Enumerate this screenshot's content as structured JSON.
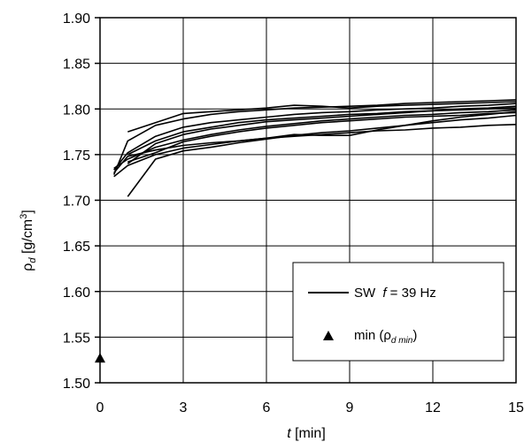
{
  "chart_data": {
    "type": "line",
    "xlabel": "t [min]",
    "ylabel": "ρd [g/cm³]",
    "xlim": [
      0,
      15
    ],
    "ylim": [
      1.5,
      1.9
    ],
    "x_ticks": [
      "0",
      "3",
      "6",
      "9",
      "12",
      "15"
    ],
    "y_ticks": [
      "1.50",
      "1.55",
      "1.60",
      "1.65",
      "1.70",
      "1.75",
      "1.80",
      "1.85",
      "1.90"
    ],
    "grid": true,
    "legend_position": "lower-right",
    "legend": {
      "line_entry": {
        "prefix": "SW",
        "italic": "f",
        "suffix": " = 39 Hz"
      },
      "marker_entry": {
        "prefix": "min (ρ",
        "subscript": "d min",
        "suffix": ")"
      }
    },
    "x": [
      0.5,
      1,
      2,
      3,
      4,
      5,
      6,
      7,
      8,
      9,
      10,
      11,
      12,
      13,
      14,
      15
    ],
    "series": [
      {
        "values": [
          1.728,
          1.765,
          1.782,
          1.789,
          1.794,
          1.797,
          1.799,
          1.801,
          1.802,
          1.803,
          1.804,
          1.806,
          1.807,
          1.808,
          1.809,
          1.81
        ]
      },
      {
        "values": [
          null,
          1.775,
          1.785,
          1.795,
          1.797,
          1.799,
          1.801,
          1.804,
          1.803,
          1.801,
          1.803,
          1.804,
          1.805,
          1.806,
          1.807,
          1.808
        ]
      },
      {
        "values": [
          1.733,
          1.752,
          1.77,
          1.78,
          1.785,
          1.788,
          1.791,
          1.794,
          1.796,
          1.797,
          1.799,
          1.8,
          1.801,
          1.803,
          1.804,
          1.806
        ]
      },
      {
        "values": [
          null,
          1.74,
          1.762,
          1.772,
          1.778,
          1.782,
          1.786,
          1.788,
          1.79,
          1.792,
          1.794,
          1.796,
          1.798,
          1.799,
          1.8,
          1.801
        ]
      },
      {
        "values": [
          1.735,
          1.745,
          1.758,
          1.766,
          1.772,
          1.777,
          1.781,
          1.784,
          1.787,
          1.789,
          1.791,
          1.793,
          1.794,
          1.796,
          1.797,
          1.799
        ]
      },
      {
        "values": [
          null,
          1.704,
          1.745,
          1.754,
          1.758,
          1.763,
          1.767,
          1.771,
          1.774,
          1.776,
          1.779,
          1.782,
          1.785,
          1.788,
          1.79,
          1.793
        ]
      },
      {
        "values": [
          1.73,
          1.748,
          1.755,
          1.76,
          1.763,
          1.765,
          1.768,
          1.772,
          1.771,
          1.771,
          1.777,
          1.782,
          1.787,
          1.791,
          1.794,
          1.797
        ]
      },
      {
        "values": [
          1.726,
          1.738,
          1.75,
          1.757,
          1.761,
          1.765,
          1.768,
          1.77,
          1.772,
          1.774,
          1.776,
          1.777,
          1.779,
          1.78,
          1.782,
          1.783
        ]
      },
      {
        "values": [
          null,
          1.75,
          1.765,
          1.775,
          1.78,
          1.785,
          1.788,
          1.79,
          1.792,
          1.794,
          1.795,
          1.797,
          1.798,
          1.8,
          1.801,
          1.803
        ]
      },
      {
        "values": [
          null,
          1.742,
          1.752,
          1.764,
          1.77,
          1.775,
          1.779,
          1.782,
          1.785,
          1.787,
          1.789,
          1.791,
          1.792,
          1.793,
          1.795,
          1.796
        ]
      }
    ],
    "markers": [
      {
        "x": 0,
        "y": 1.527
      }
    ]
  }
}
